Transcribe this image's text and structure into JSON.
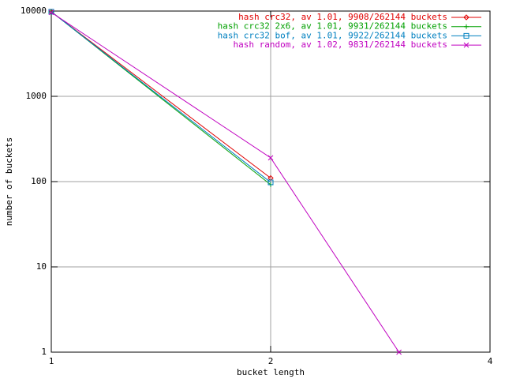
{
  "chart_data": {
    "type": "line",
    "x_label": "bucket length",
    "y_label": "number of buckets",
    "x": [
      1,
      2,
      3
    ],
    "series": [
      {
        "name": "hash crc32, av 1.01, 9908/262144 buckets",
        "color": "#e00000",
        "marker": "diamond",
        "values": [
          9798,
          110,
          null
        ]
      },
      {
        "name": "hash crc32 2x6, av 1.01, 9931/262144 buckets",
        "color": "#00a000",
        "marker": "plus",
        "values": [
          9839,
          92,
          null
        ]
      },
      {
        "name": "hash crc32 bof, av 1.01, 9922/262144 buckets",
        "color": "#0080c0",
        "marker": "square",
        "values": [
          9824,
          98,
          null
        ]
      },
      {
        "name": "hash random, av 1.02, 9831/262144 buckets",
        "color": "#c000c0",
        "marker": "cross",
        "values": [
          9640,
          190,
          1
        ]
      }
    ],
    "xlog": true,
    "ylog": true,
    "xlim": [
      1,
      4
    ],
    "xticks": [
      1,
      2,
      4
    ],
    "ylim": [
      1,
      10000
    ],
    "yticks": [
      1,
      10,
      100,
      1000,
      10000
    ],
    "grid": true,
    "legend": "top-right"
  }
}
